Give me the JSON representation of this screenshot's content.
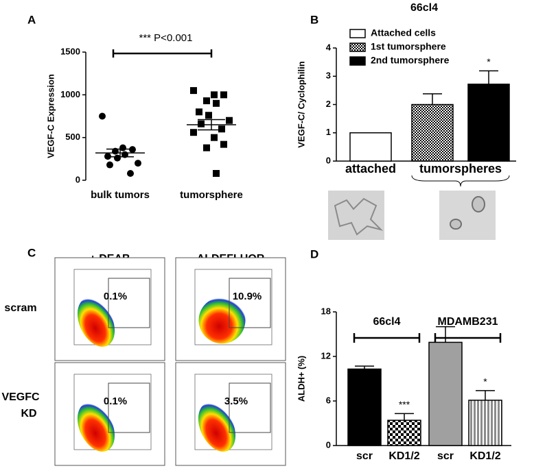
{
  "panel_labels": [
    "A",
    "B",
    "C",
    "D"
  ],
  "panel_c": {
    "columns": [
      "+ DEAB",
      "ALDEFLUOR"
    ],
    "rows": [
      [
        "scram"
      ],
      [
        "VEGFC",
        "KD"
      ]
    ],
    "gates": [
      [
        "0.1%",
        "10.9%"
      ],
      [
        "0.1%",
        "3.5%"
      ]
    ]
  },
  "chart_data": [
    {
      "type": "dotplot",
      "annotation": "*** P<0.001",
      "ylabel": "VEGF-C Expression",
      "categories": [
        "bulk tumors",
        "tumorsphere"
      ],
      "values": [
        [
          750,
          380,
          360,
          340,
          300,
          280,
          260,
          200,
          180,
          80
        ],
        [
          1050,
          1000,
          1000,
          930,
          900,
          800,
          760,
          700,
          660,
          600,
          560,
          500,
          420,
          380,
          80
        ]
      ],
      "means": [
        320,
        650
      ],
      "errors": [
        45,
        60
      ],
      "markers": [
        "circle",
        "square"
      ],
      "color": "#000000",
      "ylim": [
        0,
        1500
      ],
      "yticks": [
        0,
        500,
        1000,
        1500
      ]
    },
    {
      "type": "bar",
      "title": "66cl4",
      "ylabel": "VEGF-C/ Cyclophilin",
      "groups": [
        "attached",
        "tumorspheres"
      ],
      "legend": [
        "Attached cells",
        "1st tumorsphere",
        "2nd tumorsphere"
      ],
      "values": [
        1,
        2.0,
        2.72
      ],
      "errors": [
        null,
        0.38,
        0.47
      ],
      "stars": [
        null,
        null,
        "*"
      ],
      "colors": [
        "#ffffff",
        "#000000",
        "#000000"
      ],
      "patterns": [
        "solid",
        "checker-fine",
        "solid"
      ],
      "ylim": [
        0,
        4
      ],
      "yticks": [
        0,
        1,
        2,
        3,
        4
      ]
    },
    {
      "type": "bar",
      "ylabel": "ALDH+ (%)",
      "groups": [
        "66cl4",
        "MDAMB231"
      ],
      "categories": [
        "scr",
        "KD1/2",
        "scr",
        "KD1/2"
      ],
      "values": [
        10.3,
        3.4,
        13.9,
        6.1
      ],
      "errors": [
        0.4,
        0.9,
        2.1,
        1.3
      ],
      "stars": [
        null,
        "***",
        null,
        "*"
      ],
      "colors": [
        "#000000",
        "#000000",
        "#a0a0a0",
        "#a0a0a0"
      ],
      "patterns": [
        "solid",
        "checker",
        "solid",
        "stripes"
      ],
      "ylim": [
        0,
        18
      ],
      "yticks": [
        0,
        6,
        12,
        18
      ]
    }
  ]
}
